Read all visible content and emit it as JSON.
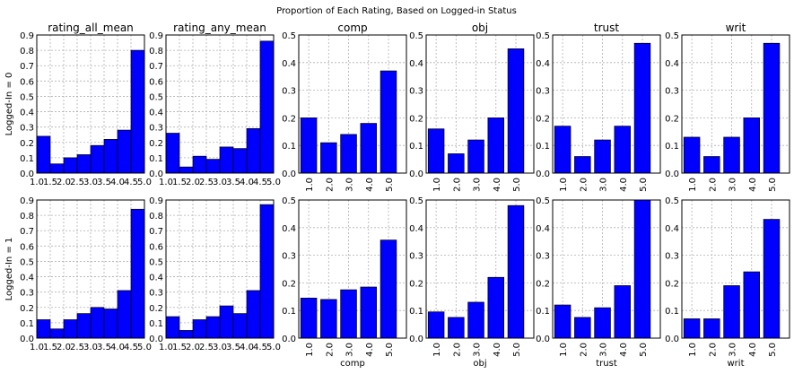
{
  "figure": {
    "title": "Proportion of Each Rating, Based on Logged-in Status"
  },
  "chart_data": [
    {
      "type": "bar",
      "row": 0,
      "col": 0,
      "title": "rating_all_mean",
      "ylabel": "Logged-In = 0",
      "xlabel": "",
      "ylim": [
        0,
        0.9
      ],
      "yticks": [
        "0.0",
        "0.1",
        "0.2",
        "0.3",
        "0.4",
        "0.5",
        "0.6",
        "0.7",
        "0.8",
        "0.9"
      ],
      "xticks": [
        "1.0",
        "1.5",
        "2.0",
        "2.5",
        "3.0",
        "3.5",
        "4.0",
        "4.5",
        "5.0"
      ],
      "values": [
        0.24,
        0.06,
        0.1,
        0.12,
        0.18,
        0.22,
        0.28,
        0.8
      ]
    },
    {
      "type": "bar",
      "row": 0,
      "col": 1,
      "title": "rating_any_mean",
      "ylabel": "",
      "xlabel": "",
      "ylim": [
        0,
        0.9
      ],
      "yticks": [
        "0.0",
        "0.1",
        "0.2",
        "0.3",
        "0.4",
        "0.5",
        "0.6",
        "0.7",
        "0.8",
        "0.9"
      ],
      "xticks": [
        "1.0",
        "1.5",
        "2.0",
        "2.5",
        "3.0",
        "3.5",
        "4.0",
        "4.5",
        "5.0"
      ],
      "values": [
        0.26,
        0.04,
        0.11,
        0.09,
        0.17,
        0.16,
        0.29,
        0.86
      ]
    },
    {
      "type": "bar",
      "row": 0,
      "col": 2,
      "title": "comp",
      "ylabel": "",
      "xlabel": "",
      "ylim": [
        0,
        0.5
      ],
      "yticks": [
        "0.0",
        "0.1",
        "0.2",
        "0.3",
        "0.4",
        "0.5"
      ],
      "categories": [
        "1.0",
        "2.0",
        "3.0",
        "4.0",
        "5.0"
      ],
      "values": [
        0.2,
        0.11,
        0.14,
        0.18,
        0.37
      ]
    },
    {
      "type": "bar",
      "row": 0,
      "col": 3,
      "title": "obj",
      "ylabel": "",
      "xlabel": "",
      "ylim": [
        0,
        0.5
      ],
      "yticks": [
        "0.0",
        "0.1",
        "0.2",
        "0.3",
        "0.4",
        "0.5"
      ],
      "categories": [
        "1.0",
        "2.0",
        "3.0",
        "4.0",
        "5.0"
      ],
      "values": [
        0.16,
        0.07,
        0.12,
        0.2,
        0.45
      ]
    },
    {
      "type": "bar",
      "row": 0,
      "col": 4,
      "title": "trust",
      "ylabel": "",
      "xlabel": "",
      "ylim": [
        0,
        0.5
      ],
      "yticks": [
        "0.0",
        "0.1",
        "0.2",
        "0.3",
        "0.4",
        "0.5"
      ],
      "categories": [
        "1.0",
        "2.0",
        "3.0",
        "4.0",
        "5.0"
      ],
      "values": [
        0.17,
        0.06,
        0.12,
        0.17,
        0.47
      ]
    },
    {
      "type": "bar",
      "row": 0,
      "col": 5,
      "title": "writ",
      "ylabel": "",
      "xlabel": "",
      "ylim": [
        0,
        0.5
      ],
      "yticks": [
        "0.0",
        "0.1",
        "0.2",
        "0.3",
        "0.4",
        "0.5"
      ],
      "categories": [
        "1.0",
        "2.0",
        "3.0",
        "4.0",
        "5.0"
      ],
      "values": [
        0.13,
        0.06,
        0.13,
        0.2,
        0.47
      ]
    },
    {
      "type": "bar",
      "row": 1,
      "col": 0,
      "title": "",
      "ylabel": "Logged-In = 1",
      "xlabel": "",
      "ylim": [
        0,
        0.9
      ],
      "yticks": [
        "0.0",
        "0.1",
        "0.2",
        "0.3",
        "0.4",
        "0.5",
        "0.6",
        "0.7",
        "0.8",
        "0.9"
      ],
      "xticks": [
        "1.0",
        "1.5",
        "2.0",
        "2.5",
        "3.0",
        "3.5",
        "4.0",
        "4.5",
        "5.0"
      ],
      "values": [
        0.12,
        0.06,
        0.12,
        0.16,
        0.2,
        0.19,
        0.31,
        0.84
      ]
    },
    {
      "type": "bar",
      "row": 1,
      "col": 1,
      "title": "",
      "ylabel": "",
      "xlabel": "",
      "ylim": [
        0,
        0.9
      ],
      "yticks": [
        "0.0",
        "0.1",
        "0.2",
        "0.3",
        "0.4",
        "0.5",
        "0.6",
        "0.7",
        "0.8",
        "0.9"
      ],
      "xticks": [
        "1.0",
        "1.5",
        "2.0",
        "2.5",
        "3.0",
        "3.5",
        "4.0",
        "4.5",
        "5.0"
      ],
      "values": [
        0.14,
        0.05,
        0.12,
        0.14,
        0.21,
        0.16,
        0.31,
        0.87
      ]
    },
    {
      "type": "bar",
      "row": 1,
      "col": 2,
      "title": "",
      "ylabel": "",
      "xlabel": "comp",
      "ylim": [
        0,
        0.5
      ],
      "yticks": [
        "0.0",
        "0.1",
        "0.2",
        "0.3",
        "0.4",
        "0.5"
      ],
      "categories": [
        "1.0",
        "2.0",
        "3.0",
        "4.0",
        "5.0"
      ],
      "values": [
        0.145,
        0.14,
        0.175,
        0.185,
        0.355
      ]
    },
    {
      "type": "bar",
      "row": 1,
      "col": 3,
      "title": "",
      "ylabel": "",
      "xlabel": "obj",
      "ylim": [
        0,
        0.5
      ],
      "yticks": [
        "0.0",
        "0.1",
        "0.2",
        "0.3",
        "0.4",
        "0.5"
      ],
      "categories": [
        "1.0",
        "2.0",
        "3.0",
        "4.0",
        "5.0"
      ],
      "values": [
        0.095,
        0.075,
        0.13,
        0.22,
        0.48
      ]
    },
    {
      "type": "bar",
      "row": 1,
      "col": 4,
      "title": "",
      "ylabel": "",
      "xlabel": "trust",
      "ylim": [
        0,
        0.5
      ],
      "yticks": [
        "0.0",
        "0.1",
        "0.2",
        "0.3",
        "0.4",
        "0.5"
      ],
      "categories": [
        "1.0",
        "2.0",
        "3.0",
        "4.0",
        "5.0"
      ],
      "values": [
        0.12,
        0.075,
        0.11,
        0.19,
        0.5
      ]
    },
    {
      "type": "bar",
      "row": 1,
      "col": 5,
      "title": "",
      "ylabel": "",
      "xlabel": "writ",
      "ylim": [
        0,
        0.5
      ],
      "yticks": [
        "0.0",
        "0.1",
        "0.2",
        "0.3",
        "0.4",
        "0.5"
      ],
      "categories": [
        "1.0",
        "2.0",
        "3.0",
        "4.0",
        "5.0"
      ],
      "values": [
        0.07,
        0.07,
        0.19,
        0.24,
        0.43
      ]
    }
  ],
  "style": {
    "bar_color": "#0000ff",
    "edge_color": "#000000",
    "grid": true
  }
}
